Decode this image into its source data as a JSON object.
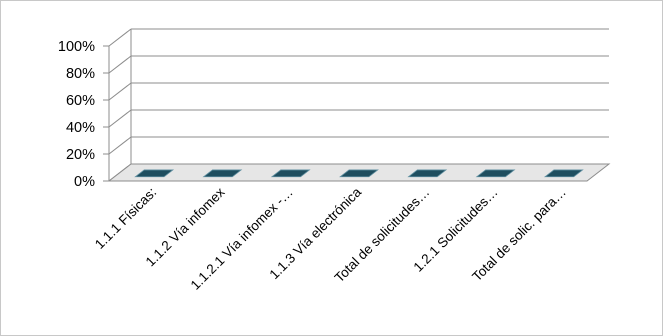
{
  "chart_data": {
    "type": "bar",
    "style": "3d-clustered-column",
    "categories": [
      "1.1.1 Físicas:",
      "1.1.2 Vía infomex",
      "1.1.2.1 Vía infomex -…",
      "1.1.3 Vía electrónica",
      "Total de solicitudes…",
      "1.2.1 Solicitudes…",
      "Total de solic. para…"
    ],
    "series": [
      {
        "values": [
          0,
          0,
          0,
          0,
          0,
          0,
          0
        ]
      }
    ],
    "ylim": [
      0,
      1
    ],
    "yticks": [
      0,
      0.2,
      0.4,
      0.6,
      0.8,
      1.0
    ],
    "ytick_labels": [
      "0%",
      "20%",
      "40%",
      "60%",
      "80%",
      "100%"
    ],
    "grid": true,
    "legend": "none",
    "colors": {
      "bar_top": "#1f4e5f",
      "bar_side": "#2d6a80",
      "floor": "#e6e6e6",
      "grid": "#8c8c8c"
    }
  }
}
